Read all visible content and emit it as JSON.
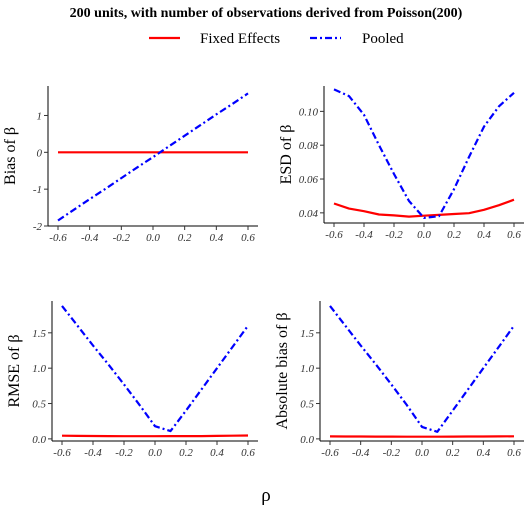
{
  "figure": {
    "title": "200 units, with number of observations derived from Poisson(200)",
    "xlabel": "ρ"
  },
  "legend": {
    "items": [
      {
        "label": "Fixed Effects",
        "color": "#ff0000",
        "style": "solid"
      },
      {
        "label": "Pooled",
        "color": "#0000ff",
        "style": "dashdot"
      }
    ]
  },
  "chart_data": [
    {
      "type": "line",
      "ylabel": "Bias of β",
      "x": [
        -0.6,
        -0.5,
        -0.4,
        -0.3,
        -0.2,
        -0.1,
        0.0,
        0.1,
        0.2,
        0.3,
        0.4,
        0.5,
        0.6
      ],
      "xticks": [
        "-0.6",
        "-0.4",
        "-0.2",
        "0.0",
        "0.2",
        "0.4",
        "0.6"
      ],
      "yticks": [
        {
          "v": -2,
          "label": "-2"
        },
        {
          "v": -1,
          "label": "-1"
        },
        {
          "v": 0,
          "label": "0"
        },
        {
          "v": 1,
          "label": "1"
        }
      ],
      "xlim": [
        -0.6,
        0.6
      ],
      "ylim": [
        -2.0,
        1.8
      ],
      "series": [
        {
          "name": "Fixed Effects",
          "values": [
            0,
            0,
            0,
            0,
            0,
            0,
            0,
            0,
            0,
            0,
            0,
            0,
            0
          ]
        },
        {
          "name": "Pooled",
          "values": [
            -1.85,
            -1.56,
            -1.27,
            -0.99,
            -0.7,
            -0.41,
            -0.13,
            0.16,
            0.45,
            0.74,
            1.03,
            1.31,
            1.6
          ]
        }
      ]
    },
    {
      "type": "line",
      "ylabel": "ESD of β",
      "x": [
        -0.6,
        -0.5,
        -0.4,
        -0.3,
        -0.2,
        -0.1,
        0.0,
        0.1,
        0.2,
        0.3,
        0.4,
        0.5,
        0.6
      ],
      "xticks": [
        "-0.6",
        "-0.4",
        "-0.2",
        "0.0",
        "0.2",
        "0.4",
        "0.6"
      ],
      "yticks": [
        {
          "v": 0.04,
          "label": "0.04"
        },
        {
          "v": 0.06,
          "label": "0.06"
        },
        {
          "v": 0.08,
          "label": "0.08"
        },
        {
          "v": 0.1,
          "label": "0.10"
        }
      ],
      "xlim": [
        -0.6,
        0.6
      ],
      "ylim": [
        0.034,
        0.115
      ],
      "series": [
        {
          "name": "Fixed Effects",
          "values": [
            0.0455,
            0.0425,
            0.041,
            0.039,
            0.0385,
            0.0378,
            0.0383,
            0.0388,
            0.0393,
            0.0398,
            0.0418,
            0.0445,
            0.0478
          ]
        },
        {
          "name": "Pooled",
          "values": [
            0.113,
            0.109,
            0.098,
            0.08,
            0.063,
            0.047,
            0.037,
            0.038,
            0.054,
            0.073,
            0.091,
            0.103,
            0.111
          ]
        }
      ]
    },
    {
      "type": "line",
      "ylabel": "RMSE of β",
      "x": [
        -0.6,
        -0.5,
        -0.4,
        -0.3,
        -0.2,
        -0.1,
        0.0,
        0.1,
        0.2,
        0.3,
        0.4,
        0.5,
        0.6
      ],
      "xticks": [
        "-0.6",
        "-0.4",
        "-0.2",
        "0.0",
        "0.2",
        "0.4",
        "0.6"
      ],
      "yticks": [
        {
          "v": 0.0,
          "label": "0.0"
        },
        {
          "v": 0.5,
          "label": "0.5"
        },
        {
          "v": 1.0,
          "label": "1.0"
        },
        {
          "v": 1.5,
          "label": "1.5"
        }
      ],
      "xlim": [
        -0.6,
        0.6
      ],
      "ylim": [
        -0.03,
        1.95
      ],
      "series": [
        {
          "name": "Fixed Effects",
          "values": [
            0.045,
            0.042,
            0.041,
            0.039,
            0.038,
            0.038,
            0.038,
            0.039,
            0.039,
            0.04,
            0.042,
            0.045,
            0.048
          ]
        },
        {
          "name": "Pooled",
          "values": [
            1.88,
            1.6,
            1.32,
            1.05,
            0.77,
            0.48,
            0.18,
            0.11,
            0.4,
            0.7,
            1.0,
            1.3,
            1.6
          ]
        }
      ]
    },
    {
      "type": "line",
      "ylabel": "Absolute bias of β",
      "x": [
        -0.6,
        -0.5,
        -0.4,
        -0.3,
        -0.2,
        -0.1,
        0.0,
        0.1,
        0.2,
        0.3,
        0.4,
        0.5,
        0.6
      ],
      "xticks": [
        "-0.6",
        "-0.4",
        "-0.2",
        "0.0",
        "0.2",
        "0.4",
        "0.6"
      ],
      "yticks": [
        {
          "v": 0.0,
          "label": "0.0"
        },
        {
          "v": 0.5,
          "label": "0.5"
        },
        {
          "v": 1.0,
          "label": "1.0"
        },
        {
          "v": 1.5,
          "label": "1.5"
        }
      ],
      "xlim": [
        -0.6,
        0.6
      ],
      "ylim": [
        -0.03,
        1.95
      ],
      "series": [
        {
          "name": "Fixed Effects",
          "values": [
            0.035,
            0.034,
            0.033,
            0.032,
            0.032,
            0.031,
            0.031,
            0.031,
            0.032,
            0.033,
            0.034,
            0.035,
            0.036
          ]
        },
        {
          "name": "Pooled",
          "values": [
            1.88,
            1.6,
            1.32,
            1.05,
            0.77,
            0.48,
            0.17,
            0.1,
            0.4,
            0.7,
            1.0,
            1.3,
            1.6
          ]
        }
      ]
    }
  ]
}
